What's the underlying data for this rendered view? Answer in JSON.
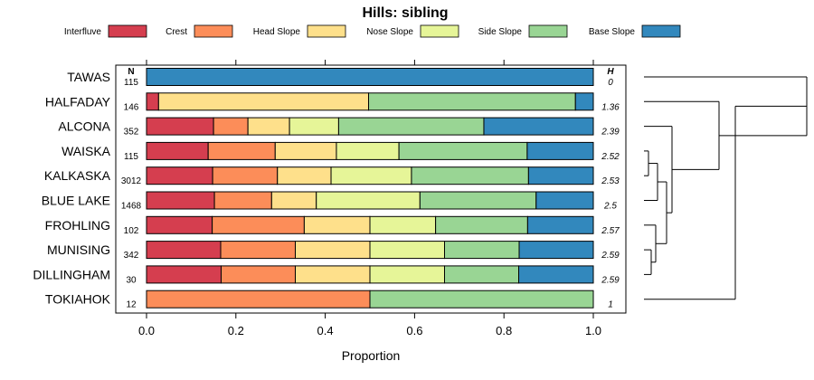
{
  "chart_data": {
    "type": "bar",
    "stacked": true,
    "orientation": "horizontal",
    "title": "Hills: sibling",
    "xlabel": "Proportion",
    "xlim": [
      0,
      1
    ],
    "xticks": [
      "0.0",
      "0.2",
      "0.4",
      "0.6",
      "0.8",
      "1.0"
    ],
    "n_header": "N",
    "h_header": "H",
    "legend": [
      {
        "name": "Interfluve",
        "color": "#d53e4f"
      },
      {
        "name": "Crest",
        "color": "#fc8d59"
      },
      {
        "name": "Head Slope",
        "color": "#fee08b"
      },
      {
        "name": "Nose Slope",
        "color": "#e6f598"
      },
      {
        "name": "Side Slope",
        "color": "#99d594"
      },
      {
        "name": "Base Slope",
        "color": "#3288bd"
      }
    ],
    "categories": [
      "TAWAS",
      "HALFADAY",
      "ALCONA",
      "WAISKA",
      "KALKASKA",
      "BLUE LAKE",
      "FROHLING",
      "MUNISING",
      "DILLINGHAM",
      "TOKIAHOK"
    ],
    "n": [
      "115",
      "146",
      "352",
      "115",
      "3012",
      "1468",
      "102",
      "342",
      "30",
      "12"
    ],
    "h": [
      "0",
      "1.36",
      "2.39",
      "2.52",
      "2.53",
      "2.5",
      "2.57",
      "2.59",
      "2.59",
      "1"
    ],
    "rows": [
      [
        0,
        0,
        0,
        0,
        0,
        1.0
      ],
      [
        0.027,
        0,
        0.47,
        0,
        0.463,
        0.04
      ],
      [
        0.15,
        0.077,
        0.093,
        0.11,
        0.325,
        0.245
      ],
      [
        0.138,
        0.15,
        0.137,
        0.14,
        0.287,
        0.148
      ],
      [
        0.148,
        0.145,
        0.12,
        0.18,
        0.262,
        0.145
      ],
      [
        0.152,
        0.128,
        0.1,
        0.232,
        0.26,
        0.128
      ],
      [
        0.147,
        0.206,
        0.147,
        0.147,
        0.206,
        0.147
      ],
      [
        0.166,
        0.167,
        0.167,
        0.167,
        0.167,
        0.166
      ],
      [
        0.167,
        0.166,
        0.167,
        0.167,
        0.166,
        0.167
      ],
      [
        0,
        0.5,
        0,
        0,
        0.5,
        0
      ]
    ]
  }
}
